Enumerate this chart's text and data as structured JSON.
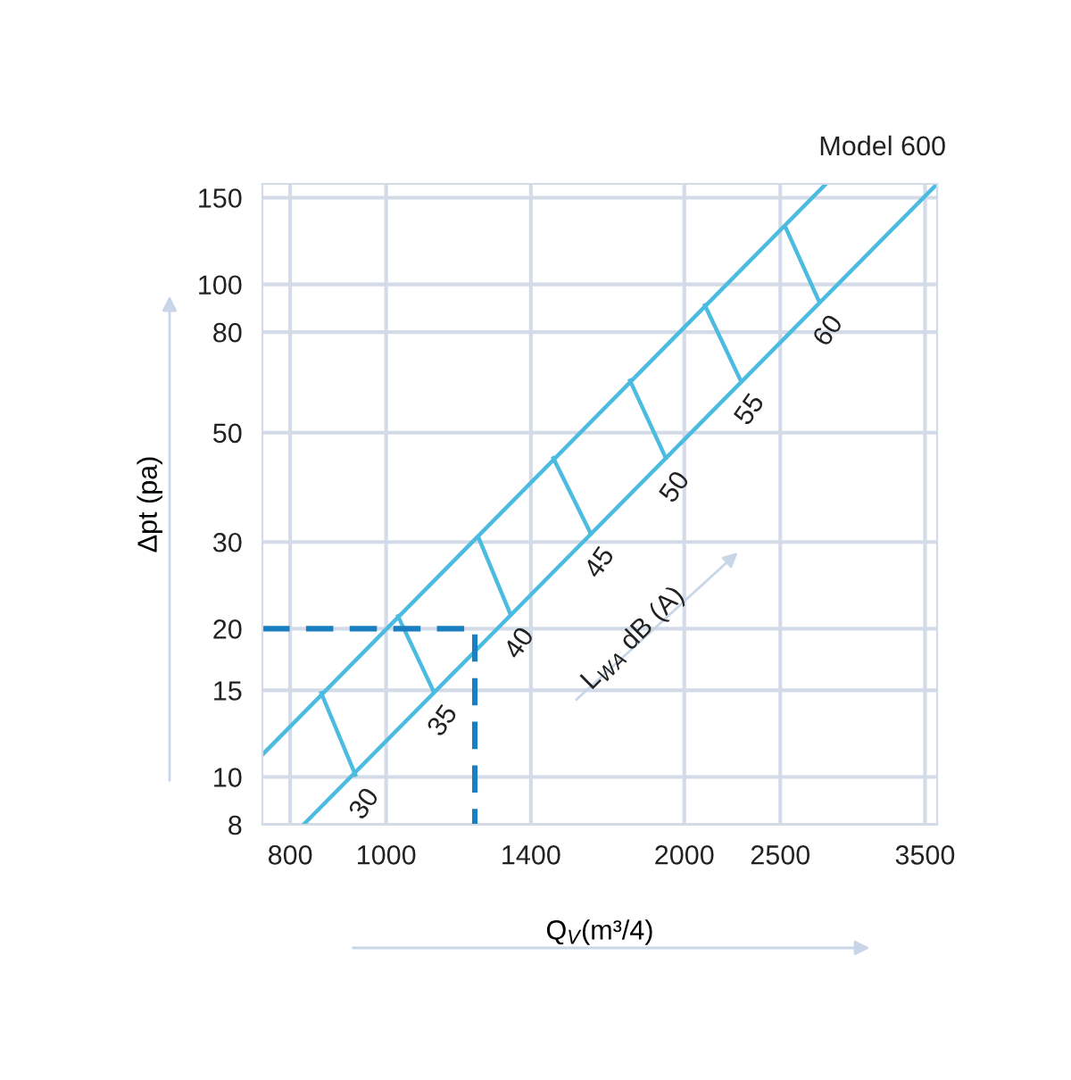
{
  "chart_data": {
    "type": "line",
    "title": "Model 600",
    "xlabel": "Q$_{V}$(m³/4)",
    "ylabel": "Δpt (pa)",
    "log": "xy",
    "grid": true,
    "legend": false,
    "marker": "none",
    "line_style": "solid",
    "xlim": [
      750,
      3600
    ],
    "ylim": [
      8,
      160
    ],
    "xticks": [
      800,
      1000,
      1400,
      2000,
      2500,
      3500
    ],
    "yticks": [
      8,
      10,
      15,
      20,
      30,
      50,
      80,
      100,
      150
    ],
    "annotations": [
      "L$_{WA}$ dB (A)"
    ],
    "series": [
      {
        "color": "#4bbbe0",
        "x": [
          750,
          2780
        ],
        "values": [
          11.1,
          160
        ]
      },
      {
        "color": "#4bbbe0",
        "x": [
          825,
          3600
        ],
        "values": [
          8,
          160
        ]
      },
      {
        "name": "30",
        "color": "#4bbbe0",
        "x": [
          860,
          931
        ],
        "values": [
          14.8,
          10.1
        ]
      },
      {
        "name": "35",
        "color": "#4bbbe0",
        "x": [
          1028,
          1117
        ],
        "values": [
          21.2,
          14.9
        ]
      },
      {
        "name": "40",
        "color": "#4bbbe0",
        "x": [
          1239,
          1335
        ],
        "values": [
          30.7,
          21.4
        ]
      },
      {
        "name": "45",
        "color": "#4bbbe0",
        "x": [
          1475,
          1609
        ],
        "values": [
          44.4,
          31.2
        ]
      },
      {
        "name": "50",
        "color": "#4bbbe0",
        "x": [
          1763,
          1916
        ],
        "values": [
          63.8,
          44.4
        ]
      },
      {
        "name": "55",
        "color": "#4bbbe0",
        "x": [
          2098,
          2280
        ],
        "values": [
          90.7,
          63.8
        ]
      },
      {
        "name": "60",
        "color": "#4bbbe0",
        "x": [
          2529,
          2737
        ],
        "values": [
          131,
          92.2
        ]
      },
      {
        "color": "#1a7fc0",
        "line_style": "dashed",
        "x": [
          750,
          1229,
          1229
        ],
        "values": [
          20,
          20,
          8
        ]
      }
    ]
  }
}
